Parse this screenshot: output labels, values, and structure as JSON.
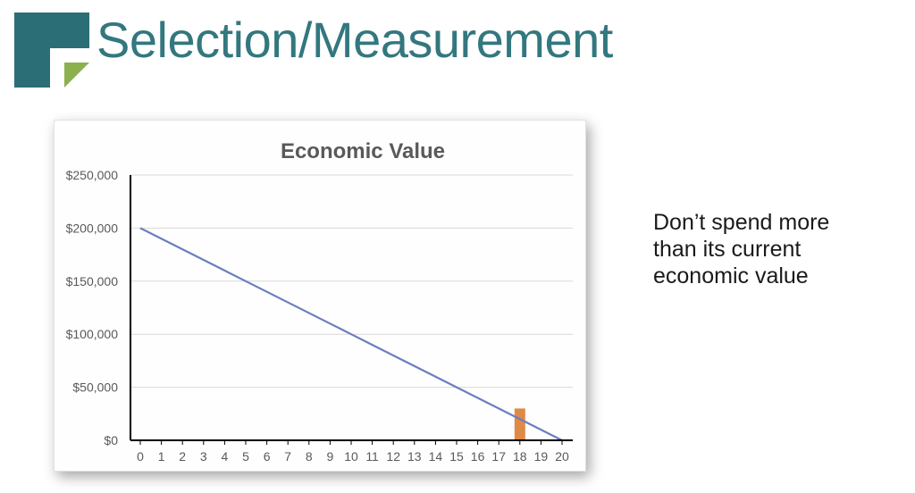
{
  "slide": {
    "title": "Selection/Measurement",
    "note_lines": [
      "Don’t spend more",
      "than its current",
      "economic value"
    ]
  },
  "colors": {
    "title": "#33777f",
    "logo_teal": "#2c6e76",
    "logo_green": "#8cb04e",
    "line": "#6a7fbf",
    "bar": "#e08a48",
    "grid": "#d9d9d9",
    "axis": "#000000",
    "tick_text": "#595959",
    "chart_title": "#595959"
  },
  "chart_data": {
    "type": "line",
    "title": "Economic Value",
    "xlabel": "",
    "ylabel": "",
    "x": [
      0,
      1,
      2,
      3,
      4,
      5,
      6,
      7,
      8,
      9,
      10,
      11,
      12,
      13,
      14,
      15,
      16,
      17,
      18,
      19,
      20
    ],
    "series": [
      {
        "kind": "line",
        "values": [
          200000,
          190000,
          180000,
          170000,
          160000,
          150000,
          140000,
          130000,
          120000,
          110000,
          100000,
          90000,
          80000,
          70000,
          60000,
          50000,
          40000,
          30000,
          20000,
          10000,
          0
        ]
      },
      {
        "kind": "bar",
        "x": 18,
        "value": 30000
      }
    ],
    "ylim": [
      0,
      250000
    ],
    "yticks": [
      0,
      50000,
      100000,
      150000,
      200000,
      250000
    ],
    "ytick_labels": [
      "$0",
      "$50,000",
      "$100,000",
      "$150,000",
      "$200,000",
      "$250,000"
    ],
    "grid": true,
    "legend": "none"
  }
}
